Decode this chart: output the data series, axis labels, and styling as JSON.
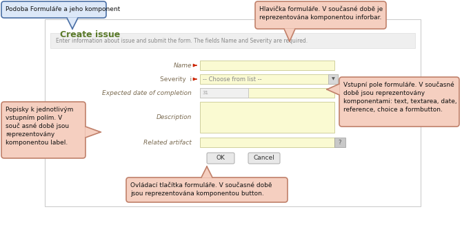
{
  "bg_color": "#ffffff",
  "callout_blue_bg": "#dce8f8",
  "callout_blue_border": "#4a6fa5",
  "callout_salmon_bg": "#f5cfc0",
  "callout_salmon_border": "#c0806a",
  "title_color": "#5a7a2a",
  "label_color": "#7a6a50",
  "required_color": "#cc2200",
  "form_title": "Create issue",
  "info_text": "Enter information about issue and submit the form. The fields Name and Severity are required.",
  "callout_top_left_text": "Podoba Formuláře a jeho komponent",
  "callout_top_right_text": "Hlavička formuláře. V současné době je\nreprezentována komponentou inforbar.",
  "callout_right_text": "Vstupní pole formuláře. V současné\ndobě jsou reprezentovány\nkomponentami: text, textarea, date,\nreference, choice a formbutton.",
  "callout_left_text": "Popisky k jednotlivým\nvstupním polím. V\nsouč asné době jsou\nreprezentovány\nkomponentou label.",
  "callout_bottom_text": "Ovládací tlačítka formuláře. V současné době\njsou reprezentována komponentou button.",
  "buttons": [
    "OK",
    "Cancel"
  ]
}
